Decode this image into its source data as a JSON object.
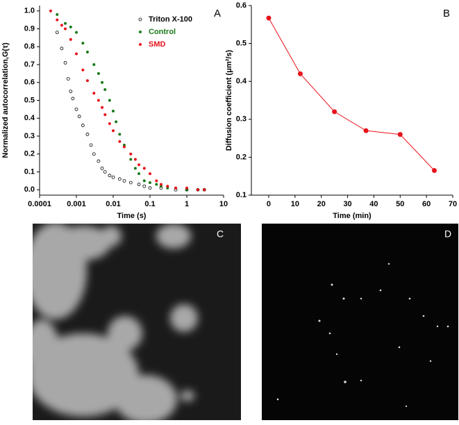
{
  "chart_data": [
    {
      "type": "scatter",
      "panel_label": "A",
      "xlabel": "Time (s)",
      "ylabel": "Normalized autocorrelation,G(τ)",
      "xscale": "log",
      "xlim": [
        0.0001,
        10
      ],
      "xticks": [
        0.0001,
        0.001,
        0.01,
        0.1,
        1,
        10
      ],
      "ylim": [
        -0.03,
        1.03
      ],
      "yticks": [
        {
          "value": 0,
          "label": "0.0"
        },
        {
          "value": 0.1,
          "label": "0.1"
        },
        {
          "value": 0.2,
          "label": "0.2"
        },
        {
          "value": 0.3,
          "label": "0.3"
        },
        {
          "value": 0.4,
          "label": "0.4"
        },
        {
          "value": 0.5,
          "label": "0.5"
        },
        {
          "value": 0.6,
          "label": "0.6"
        },
        {
          "value": 0.7,
          "label": "0.7"
        },
        {
          "value": 0.8,
          "label": "0.8"
        },
        {
          "value": 0.9,
          "label": "0.9"
        },
        {
          "value": 1,
          "label": "1.0"
        }
      ],
      "legend": "upper right",
      "series": [
        {
          "name": "Triton X-100",
          "color": "#000000",
          "marker": "open",
          "x": [
            0.0003,
            0.0004,
            0.0005,
            0.0006,
            0.0007,
            0.0008,
            0.001,
            0.0012,
            0.0015,
            0.002,
            0.0025,
            0.003,
            0.004,
            0.005,
            0.006,
            0.008,
            0.01,
            0.015,
            0.02,
            0.03,
            0.05,
            0.07,
            0.1,
            0.2,
            0.5,
            1,
            2,
            3
          ],
          "values": [
            0.88,
            0.79,
            0.71,
            0.62,
            0.55,
            0.51,
            0.45,
            0.41,
            0.36,
            0.31,
            0.25,
            0.2,
            0.16,
            0.12,
            0.1,
            0.08,
            0.07,
            0.06,
            0.05,
            0.04,
            0.03,
            0.02,
            0.01,
            0.01,
            0,
            0,
            0,
            0
          ]
        },
        {
          "name": "Control",
          "color": "#1a7a1a",
          "marker": "filled",
          "x": [
            0.0003,
            0.0005,
            0.0007,
            0.001,
            0.0015,
            0.002,
            0.003,
            0.004,
            0.005,
            0.006,
            0.008,
            0.01,
            0.012,
            0.015,
            0.02,
            0.03,
            0.04,
            0.05,
            0.07,
            0.1,
            0.15,
            0.2,
            0.3,
            0.5,
            1,
            2,
            3
          ],
          "values": [
            0.98,
            0.93,
            0.91,
            0.88,
            0.82,
            0.77,
            0.7,
            0.65,
            0.6,
            0.56,
            0.5,
            0.44,
            0.38,
            0.31,
            0.25,
            0.17,
            0.12,
            0.09,
            0.05,
            0.04,
            0.03,
            0.02,
            0.01,
            0.01,
            0,
            0,
            0
          ]
        },
        {
          "name": "SMD",
          "color": "#e8121b",
          "marker": "filled",
          "x": [
            0.0002,
            0.0003,
            0.0004,
            0.0005,
            0.0007,
            0.001,
            0.0015,
            0.002,
            0.003,
            0.004,
            0.005,
            0.006,
            0.008,
            0.01,
            0.015,
            0.02,
            0.03,
            0.04,
            0.05,
            0.07,
            0.1,
            0.15,
            0.2,
            0.3,
            0.5,
            1,
            2,
            3
          ],
          "values": [
            1.0,
            0.95,
            0.92,
            0.9,
            0.84,
            0.76,
            0.67,
            0.61,
            0.54,
            0.5,
            0.46,
            0.42,
            0.37,
            0.33,
            0.27,
            0.24,
            0.2,
            0.17,
            0.14,
            0.12,
            0.09,
            0.05,
            0.03,
            0.02,
            0.01,
            0.01,
            0,
            0
          ]
        }
      ]
    },
    {
      "type": "line",
      "panel_label": "B",
      "xlabel": "Time (min)",
      "ylabel": "Diffusion coefficient (μm²/s)",
      "xlim": [
        -6.6,
        70
      ],
      "xticks": [
        0,
        10,
        20,
        30,
        40,
        50,
        60,
        70
      ],
      "ylim": [
        0.1,
        0.6
      ],
      "yticks": [
        0.1,
        0.2,
        0.3,
        0.4,
        0.5,
        0.6
      ],
      "color": "#e8121b",
      "x": [
        0,
        12,
        25,
        37,
        50,
        63
      ],
      "values": [
        0.567,
        0.42,
        0.32,
        0.27,
        0.26,
        0.165
      ]
    }
  ],
  "images": [
    {
      "label": "C"
    },
    {
      "label": "D"
    }
  ]
}
